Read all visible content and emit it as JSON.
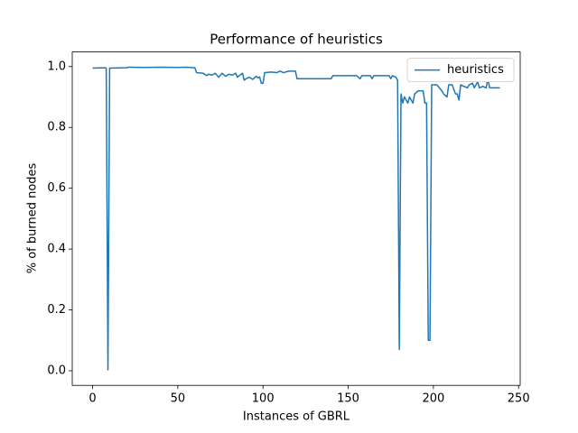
{
  "chart_data": {
    "type": "line",
    "title": "Performance of heuristics",
    "xlabel": "Instances of GBRL",
    "ylabel": "% of burned nodes",
    "x": [
      0,
      7,
      8,
      9,
      10,
      20,
      21,
      30,
      40,
      50,
      55,
      60,
      61,
      65,
      67,
      68,
      70,
      72,
      74,
      76,
      78,
      80,
      82,
      84,
      85,
      86,
      88,
      89,
      90,
      92,
      94,
      96,
      97,
      98,
      99,
      100,
      101,
      105,
      108,
      110,
      112,
      115,
      119,
      120,
      140,
      141,
      155,
      157,
      158,
      163,
      164,
      165,
      174,
      175,
      176,
      178,
      179,
      180,
      181,
      182,
      183,
      185,
      186,
      188,
      189,
      191,
      194,
      195,
      196,
      197,
      198,
      199,
      202,
      205,
      206,
      208,
      209,
      211,
      213,
      214,
      215,
      216,
      220,
      221,
      223,
      224,
      226,
      227,
      229,
      231,
      232,
      233,
      239
    ],
    "series": [
      {
        "name": "heuristics",
        "color": "#1f77b4",
        "values": [
          0.995,
          0.996,
          0.995,
          0.003,
          0.995,
          0.996,
          0.998,
          0.997,
          0.998,
          0.997,
          0.998,
          0.996,
          0.98,
          0.978,
          0.97,
          0.975,
          0.972,
          0.978,
          0.965,
          0.978,
          0.968,
          0.975,
          0.972,
          0.978,
          0.965,
          0.97,
          0.978,
          0.955,
          0.96,
          0.965,
          0.958,
          0.968,
          0.963,
          0.966,
          0.945,
          0.945,
          0.98,
          0.982,
          0.98,
          0.985,
          0.98,
          0.985,
          0.985,
          0.96,
          0.96,
          0.97,
          0.97,
          0.96,
          0.97,
          0.97,
          0.96,
          0.97,
          0.97,
          0.96,
          0.97,
          0.965,
          0.955,
          0.07,
          0.91,
          0.88,
          0.9,
          0.88,
          0.9,
          0.88,
          0.91,
          0.92,
          0.92,
          0.88,
          0.88,
          0.1,
          0.1,
          0.94,
          0.94,
          0.92,
          0.91,
          0.9,
          0.94,
          0.94,
          0.91,
          0.91,
          0.89,
          0.94,
          0.93,
          0.94,
          0.945,
          0.93,
          0.95,
          0.93,
          0.935,
          0.93,
          0.96,
          0.93,
          0.93
        ]
      }
    ],
    "xlim": [
      -11.95,
      250.95
    ],
    "ylim": [
      -0.048,
      1.048
    ],
    "xticks": [
      0,
      50,
      100,
      150,
      200,
      250
    ],
    "yticks": [
      {
        "value": 0,
        "label": "0.0"
      },
      {
        "value": 0.2,
        "label": "0.2"
      },
      {
        "value": 0.4,
        "label": "0.4"
      },
      {
        "value": 0.6,
        "label": "0.6"
      },
      {
        "value": 0.8,
        "label": "0.8"
      },
      {
        "value": 1,
        "label": "1.0"
      }
    ],
    "legend": "upper right"
  }
}
